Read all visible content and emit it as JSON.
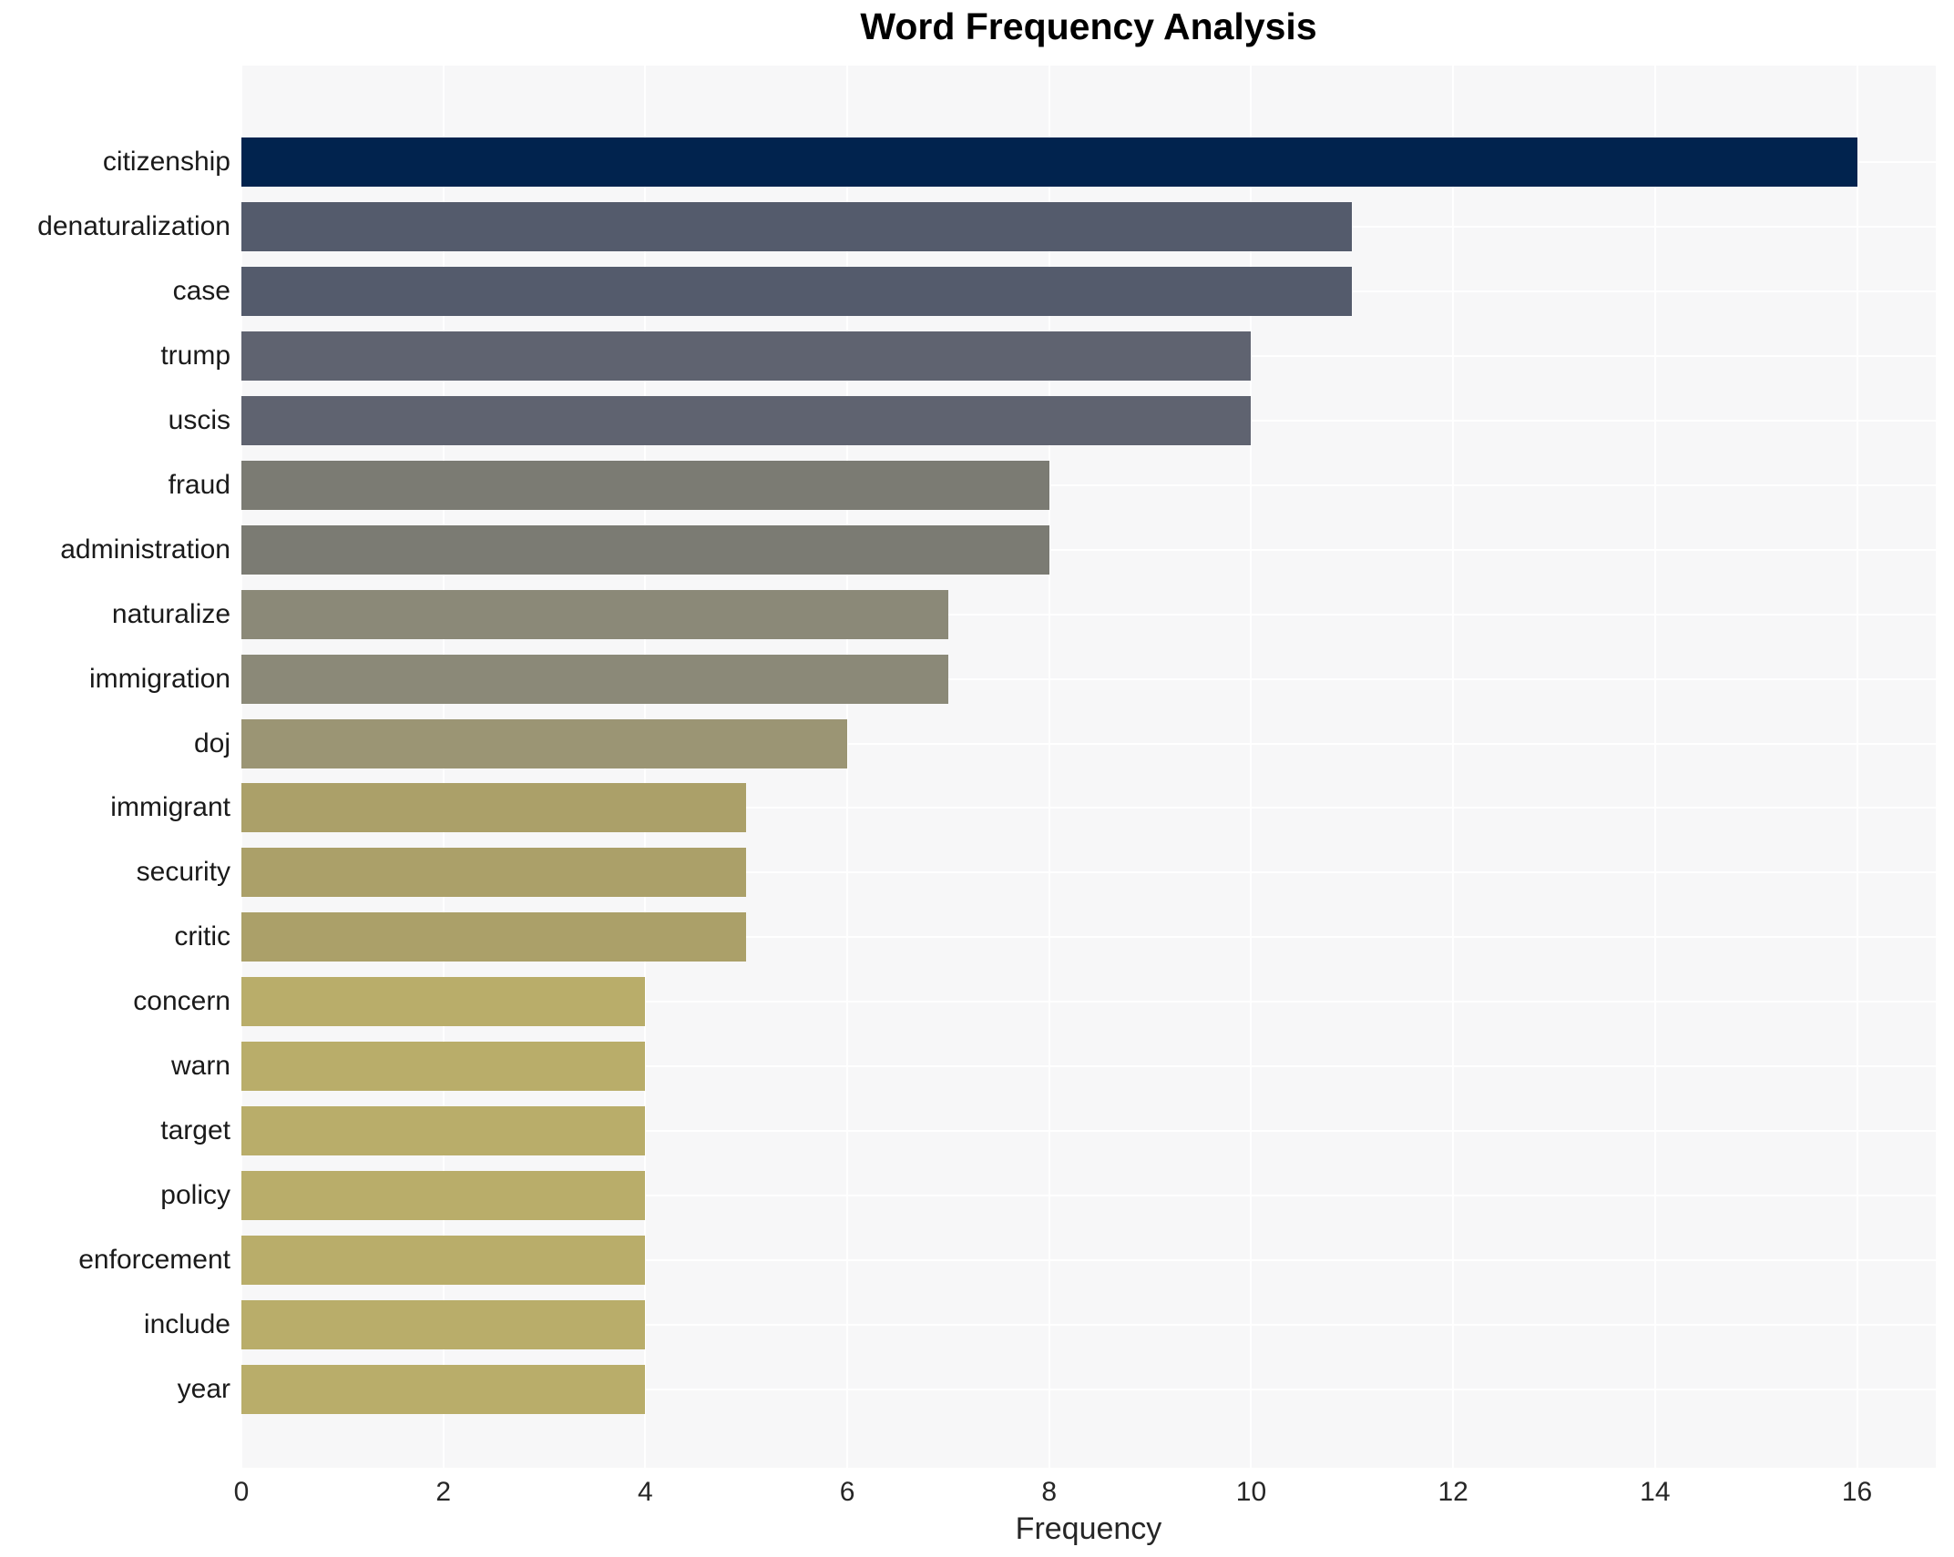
{
  "chart_data": {
    "type": "bar",
    "orientation": "horizontal",
    "title": "Word Frequency Analysis",
    "xlabel": "Frequency",
    "ylabel": "",
    "categories": [
      "citizenship",
      "denaturalization",
      "case",
      "trump",
      "uscis",
      "fraud",
      "administration",
      "naturalize",
      "immigration",
      "doj",
      "immigrant",
      "security",
      "critic",
      "concern",
      "warn",
      "target",
      "policy",
      "enforcement",
      "include",
      "year"
    ],
    "values": [
      16,
      11,
      11,
      10,
      10,
      8,
      8,
      7,
      7,
      6,
      5,
      5,
      5,
      4,
      4,
      4,
      4,
      4,
      4,
      4
    ],
    "bar_colors": [
      "#01234e",
      "#545b6c",
      "#545b6c",
      "#5f6370",
      "#5f6370",
      "#7b7b73",
      "#7b7b73",
      "#8b8978",
      "#8b8978",
      "#9b9574",
      "#aba069",
      "#aba069",
      "#aba069",
      "#b9ad6a",
      "#b9ad6a",
      "#b9ad6a",
      "#b9ad6a",
      "#b9ad6a",
      "#b9ad6a",
      "#b9ad6a"
    ],
    "x_ticks": [
      0,
      2,
      4,
      6,
      8,
      10,
      12,
      14,
      16
    ],
    "xlim": [
      0,
      16.78
    ],
    "grid": true,
    "legend": false,
    "plot_background": "#f7f7f8",
    "grid_color": "#ffffff"
  }
}
